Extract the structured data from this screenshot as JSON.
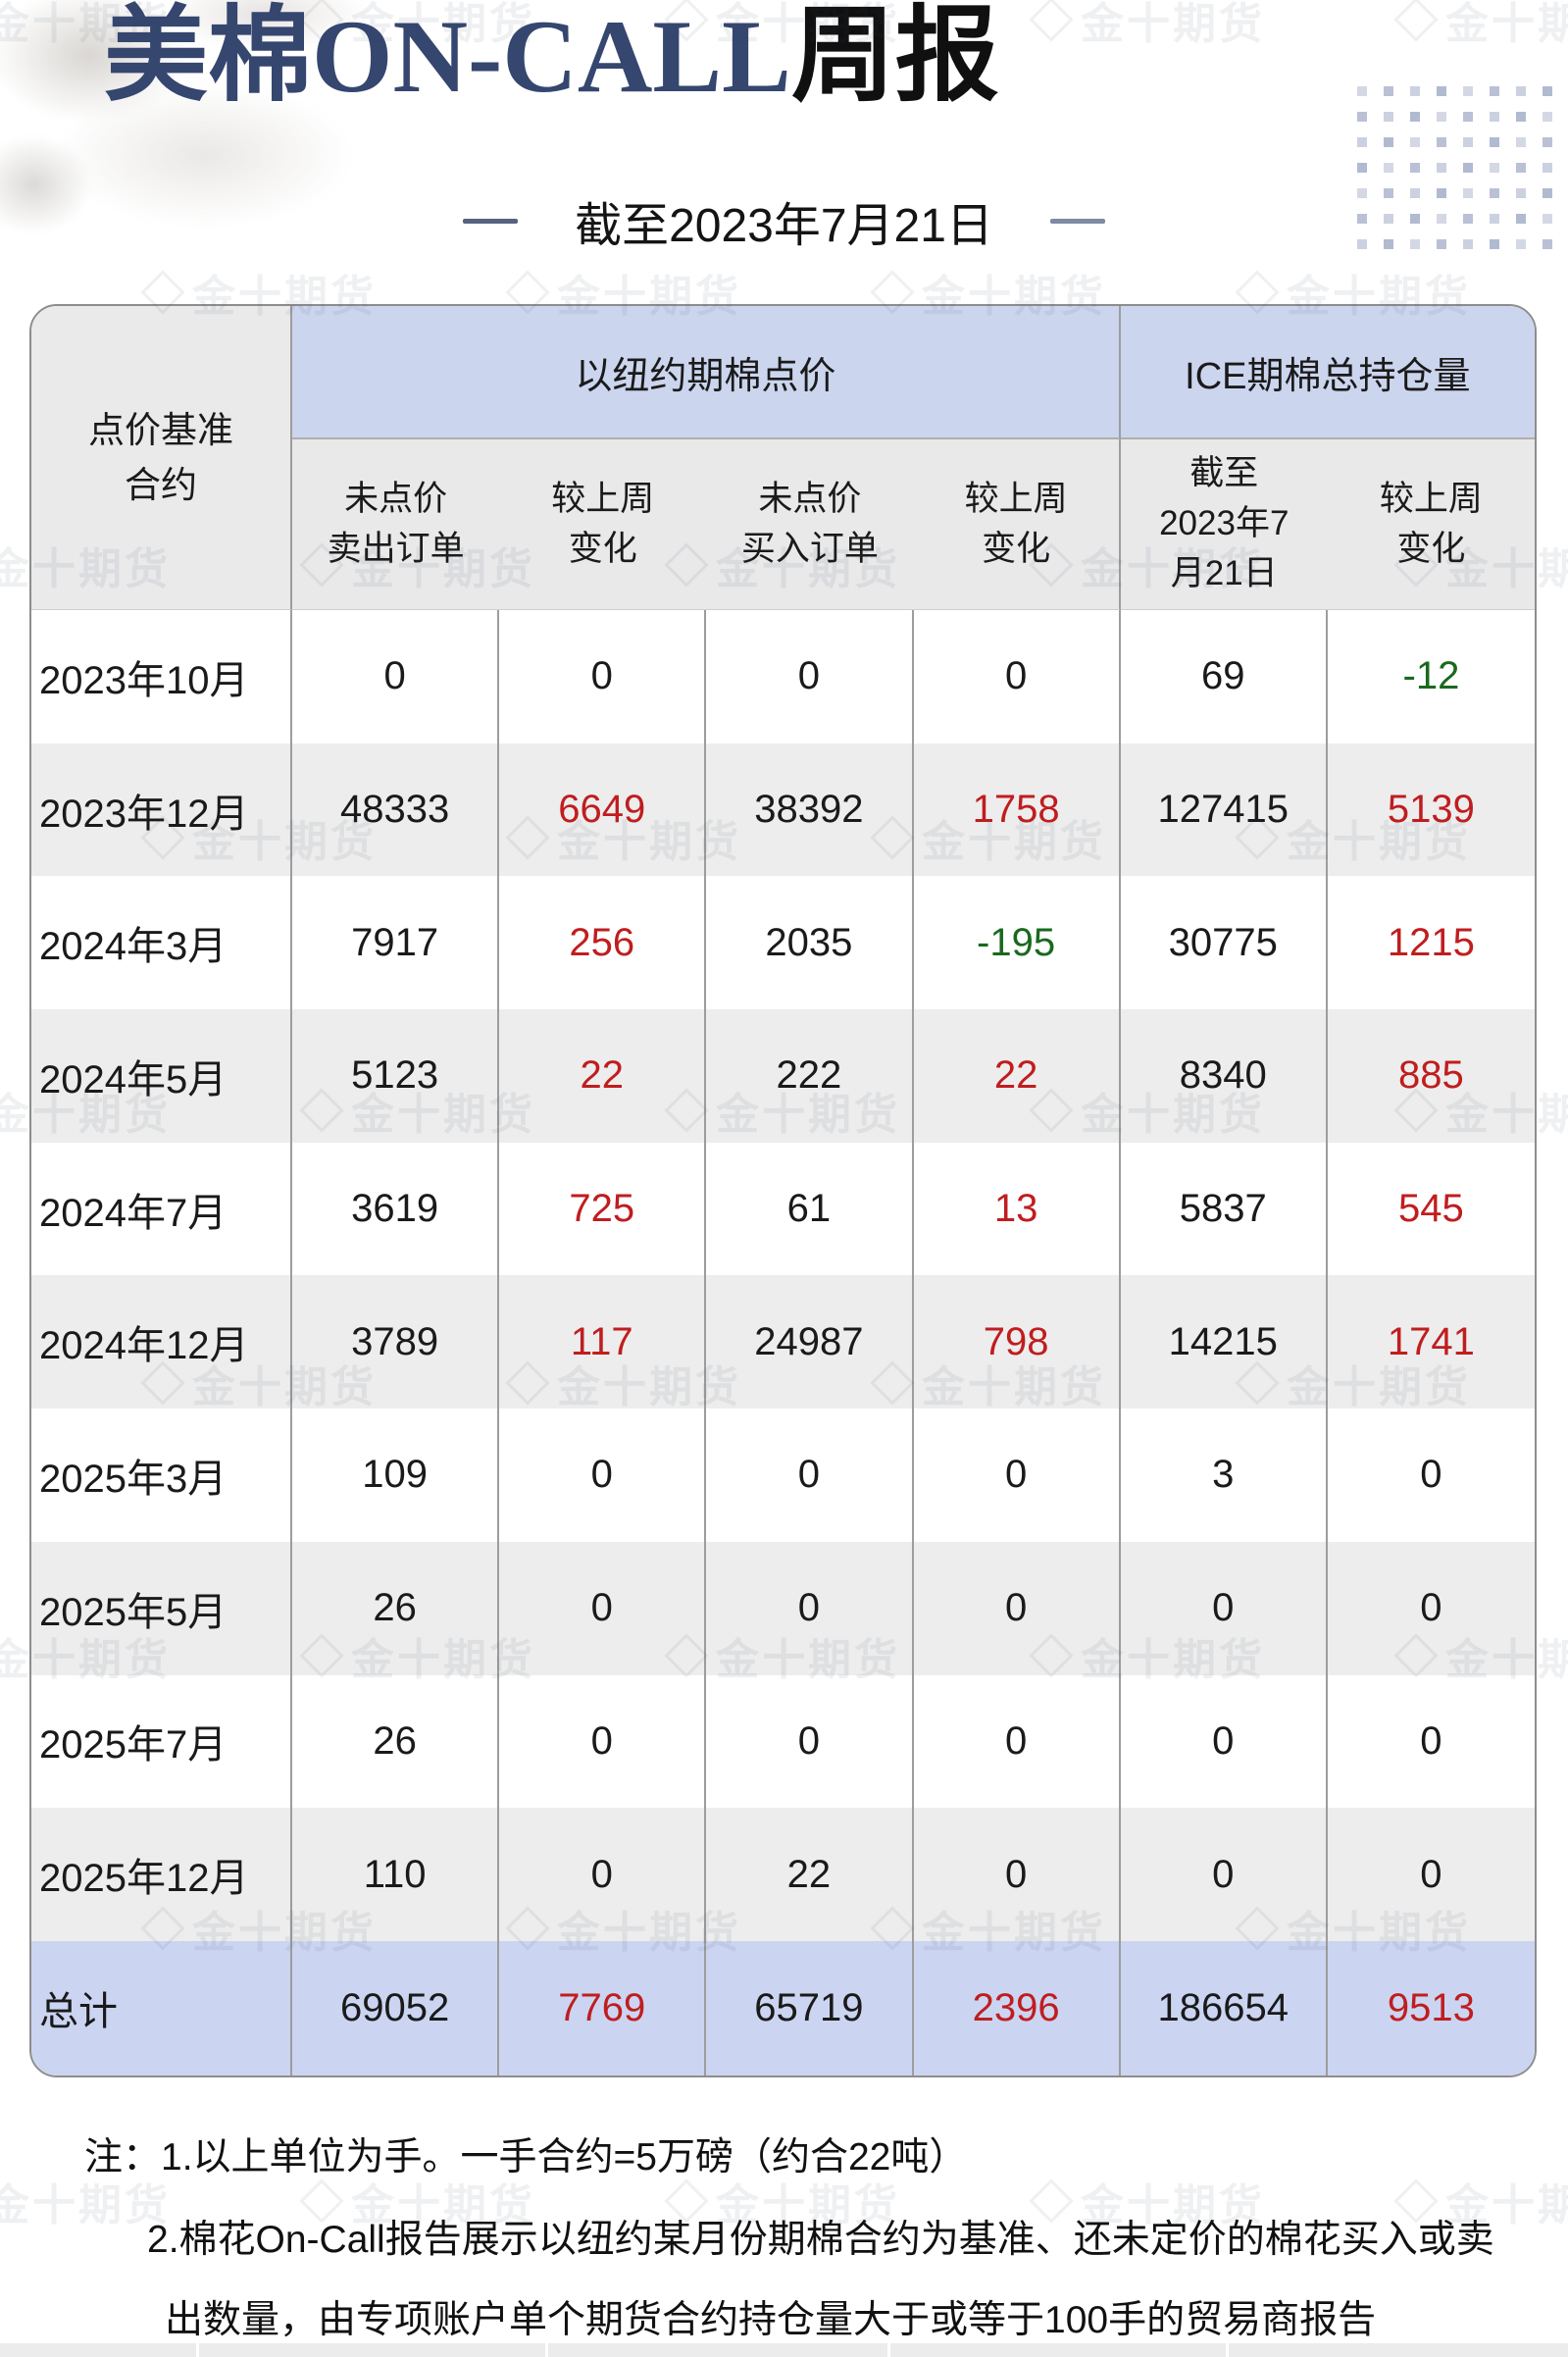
{
  "title": {
    "blue": "美棉ON-CALL",
    "black": "周报"
  },
  "subtitle": "截至2023年7月21日",
  "watermark": {
    "text": "金十期货"
  },
  "colors": {
    "title_blue": "#35466f",
    "header_blue": "#ccd5ee",
    "total_row_blue": "#cbd5f2",
    "stripe_gray": "#ededed",
    "increase_red": "#c01d1f",
    "decrease_green": "#19691d"
  },
  "table": {
    "corner": "点价基准\n合约",
    "group_headers": [
      "以纽约期棉点价",
      "ICE期棉总持仓量"
    ],
    "sub_headers": [
      "未点价\n卖出订单",
      "较上周\n变化",
      "未点价\n买入订单",
      "较上周\n变化",
      "截至\n2023年7\n月21日",
      "较上周\n变化"
    ],
    "rows": [
      {
        "label": "2023年10月",
        "cells": [
          [
            "0",
            "k"
          ],
          [
            "0",
            "k"
          ],
          [
            "0",
            "k"
          ],
          [
            "0",
            "k"
          ],
          [
            "69",
            "k"
          ],
          [
            "-12",
            "g"
          ]
        ]
      },
      {
        "label": "2023年12月",
        "cells": [
          [
            "48333",
            "k"
          ],
          [
            "6649",
            "r"
          ],
          [
            "38392",
            "k"
          ],
          [
            "1758",
            "r"
          ],
          [
            "127415",
            "k"
          ],
          [
            "5139",
            "r"
          ]
        ]
      },
      {
        "label": "2024年3月",
        "cells": [
          [
            "7917",
            "k"
          ],
          [
            "256",
            "r"
          ],
          [
            "2035",
            "k"
          ],
          [
            "-195",
            "g"
          ],
          [
            "30775",
            "k"
          ],
          [
            "1215",
            "r"
          ]
        ]
      },
      {
        "label": "2024年5月",
        "cells": [
          [
            "5123",
            "k"
          ],
          [
            "22",
            "r"
          ],
          [
            "222",
            "k"
          ],
          [
            "22",
            "r"
          ],
          [
            "8340",
            "k"
          ],
          [
            "885",
            "r"
          ]
        ]
      },
      {
        "label": "2024年7月",
        "cells": [
          [
            "3619",
            "k"
          ],
          [
            "725",
            "r"
          ],
          [
            "61",
            "k"
          ],
          [
            "13",
            "r"
          ],
          [
            "5837",
            "k"
          ],
          [
            "545",
            "r"
          ]
        ]
      },
      {
        "label": "2024年12月",
        "cells": [
          [
            "3789",
            "k"
          ],
          [
            "117",
            "r"
          ],
          [
            "24987",
            "k"
          ],
          [
            "798",
            "r"
          ],
          [
            "14215",
            "k"
          ],
          [
            "1741",
            "r"
          ]
        ]
      },
      {
        "label": "2025年3月",
        "cells": [
          [
            "109",
            "k"
          ],
          [
            "0",
            "k"
          ],
          [
            "0",
            "k"
          ],
          [
            "0",
            "k"
          ],
          [
            "3",
            "k"
          ],
          [
            "0",
            "k"
          ]
        ]
      },
      {
        "label": "2025年5月",
        "cells": [
          [
            "26",
            "k"
          ],
          [
            "0",
            "k"
          ],
          [
            "0",
            "k"
          ],
          [
            "0",
            "k"
          ],
          [
            "0",
            "k"
          ],
          [
            "0",
            "k"
          ]
        ]
      },
      {
        "label": "2025年7月",
        "cells": [
          [
            "26",
            "k"
          ],
          [
            "0",
            "k"
          ],
          [
            "0",
            "k"
          ],
          [
            "0",
            "k"
          ],
          [
            "0",
            "k"
          ],
          [
            "0",
            "k"
          ]
        ]
      },
      {
        "label": "2025年12月",
        "cells": [
          [
            "110",
            "k"
          ],
          [
            "0",
            "k"
          ],
          [
            "22",
            "k"
          ],
          [
            "0",
            "k"
          ],
          [
            "0",
            "k"
          ],
          [
            "0",
            "k"
          ]
        ]
      },
      {
        "label": "总计",
        "cells": [
          [
            "69052",
            "k"
          ],
          [
            "7769",
            "r"
          ],
          [
            "65719",
            "k"
          ],
          [
            "2396",
            "r"
          ],
          [
            "186654",
            "k"
          ],
          [
            "9513",
            "r"
          ]
        ]
      }
    ]
  },
  "notes": [
    "注：1.以上单位为手。一手合约=5万磅（约合22吨）",
    "2.棉花On-Call报告展示以纽约某月份期棉合约为基准、还未定价的棉花买入或卖",
    "出数量，由专项账户单个期货合约持仓量大于或等于100手的贸易商报告"
  ],
  "chart_data": {
    "type": "table",
    "title": "美棉ON-CALL周报",
    "subtitle": "截至2023年7月21日",
    "column_groups": [
      {
        "label": "以纽约期棉点价",
        "columns": [
          1,
          2,
          3,
          4
        ]
      },
      {
        "label": "ICE期棉总持仓量",
        "columns": [
          5,
          6
        ]
      }
    ],
    "columns": [
      "点价基准合约",
      "未点价卖出订单",
      "较上周变化",
      "未点价买入订单",
      "较上周变化",
      "截至2023年7月21日",
      "较上周变化"
    ],
    "rows": [
      [
        "2023年10月",
        0,
        0,
        0,
        0,
        69,
        -12
      ],
      [
        "2023年12月",
        48333,
        6649,
        38392,
        1758,
        127415,
        5139
      ],
      [
        "2024年3月",
        7917,
        256,
        2035,
        -195,
        30775,
        1215
      ],
      [
        "2024年5月",
        5123,
        22,
        222,
        22,
        8340,
        885
      ],
      [
        "2024年7月",
        3619,
        725,
        61,
        13,
        5837,
        545
      ],
      [
        "2024年12月",
        3789,
        117,
        24987,
        798,
        14215,
        1741
      ],
      [
        "2025年3月",
        109,
        0,
        0,
        0,
        3,
        0
      ],
      [
        "2025年5月",
        26,
        0,
        0,
        0,
        0,
        0
      ],
      [
        "2025年7月",
        26,
        0,
        0,
        0,
        0,
        0
      ],
      [
        "2025年12月",
        110,
        0,
        22,
        0,
        0,
        0
      ],
      [
        "总计",
        69052,
        7769,
        65719,
        2396,
        186654,
        9513
      ]
    ],
    "notes": [
      "注：1.以上单位为手。一手合约=5万磅（约合22吨）",
      "2.棉花On-Call报告展示以纽约某月份期棉合约为基准、还未定价的棉花买入或卖出数量，由专项账户单个期货合约持仓量大于或等于100手的贸易商报告"
    ]
  }
}
